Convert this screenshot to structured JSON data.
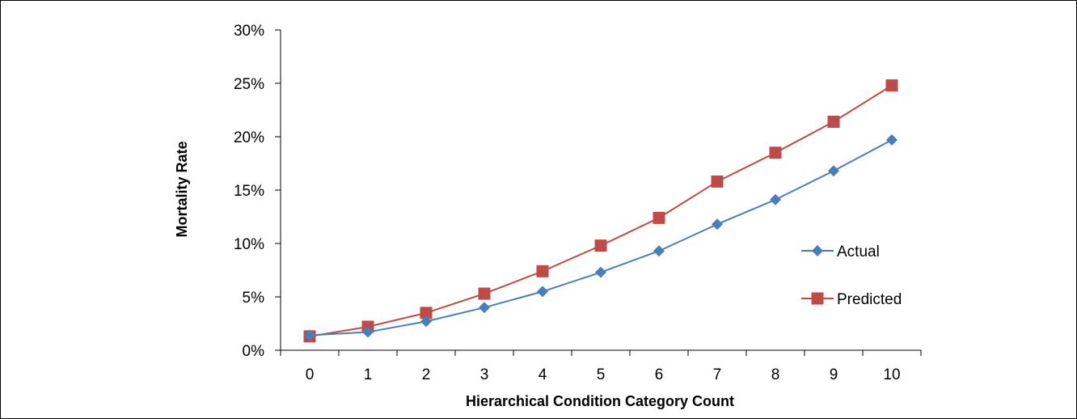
{
  "chart_data": {
    "type": "line",
    "title": "",
    "xlabel": "Hierarchical Condition Category Count",
    "ylabel": "Mortality Rate",
    "categories": [
      "0",
      "1",
      "2",
      "3",
      "4",
      "5",
      "6",
      "7",
      "8",
      "9",
      "10"
    ],
    "y_ticks": [
      "0%",
      "5%",
      "10%",
      "15%",
      "20%",
      "25%",
      "30%"
    ],
    "ylim": [
      0,
      30
    ],
    "y_unit": "%",
    "grid": false,
    "legend_position": "right",
    "series": [
      {
        "name": "Actual",
        "color": "#4a7ebb",
        "marker": "diamond",
        "values": [
          1.4,
          1.7,
          2.7,
          4.0,
          5.5,
          7.3,
          9.3,
          11.8,
          14.1,
          16.8,
          19.7
        ]
      },
      {
        "name": "Predicted",
        "color": "#be4b48",
        "marker": "square",
        "values": [
          1.3,
          2.2,
          3.5,
          5.3,
          7.4,
          9.8,
          12.4,
          15.8,
          18.5,
          21.4,
          24.8
        ]
      }
    ]
  }
}
